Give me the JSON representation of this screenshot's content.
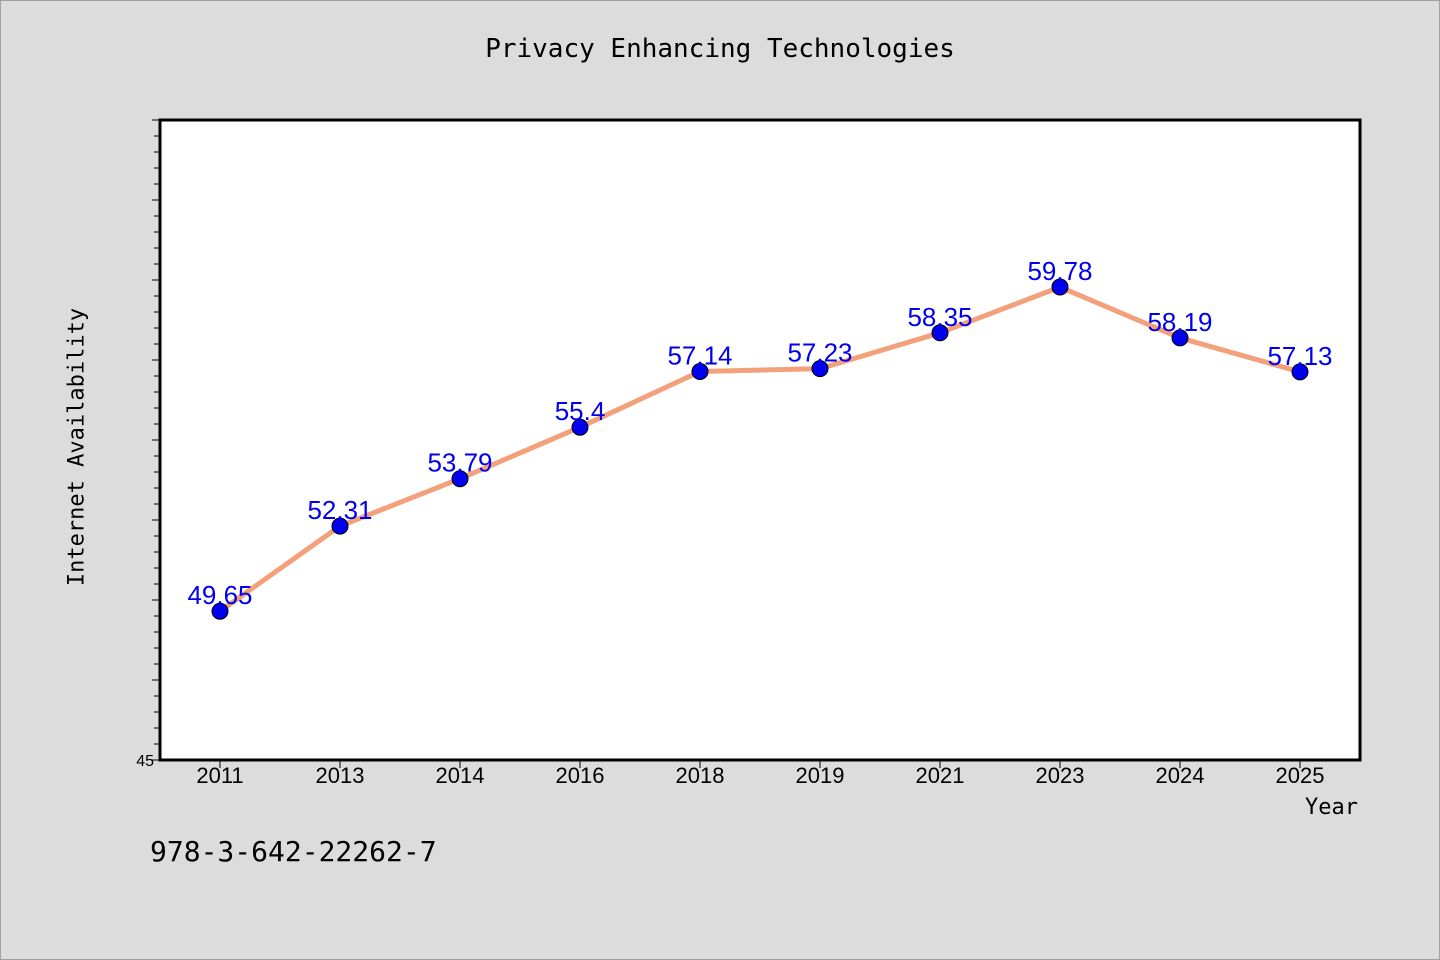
{
  "chart_data": {
    "type": "line",
    "title": "Privacy Enhancing Technologies",
    "xlabel": "Year",
    "ylabel": "Internet Availability",
    "categories": [
      "2011",
      "2013",
      "2014",
      "2016",
      "2018",
      "2019",
      "2021",
      "2023",
      "2024",
      "2025"
    ],
    "series": [
      {
        "values": [
          49.65,
          52.31,
          53.79,
          55.4,
          57.14,
          57.23,
          58.35,
          59.78,
          58.19,
          57.13
        ],
        "data_labels": [
          "49.65",
          "52.31",
          "53.79",
          "55.4",
          "57.14",
          "57.23",
          "58.35",
          "59.78",
          "58.19",
          "57.13"
        ],
        "line_color": "#f4a07a",
        "marker_color": "#0000ee"
      }
    ],
    "ylim": [
      45,
      65
    ],
    "y_tick_labels": [
      "45"
    ],
    "grid": false,
    "label_color": "#0000ee"
  },
  "footnote": "978-3-642-22262-7",
  "colors": {
    "background": "#dcdcdc",
    "plot_area": "#ffffff"
  }
}
